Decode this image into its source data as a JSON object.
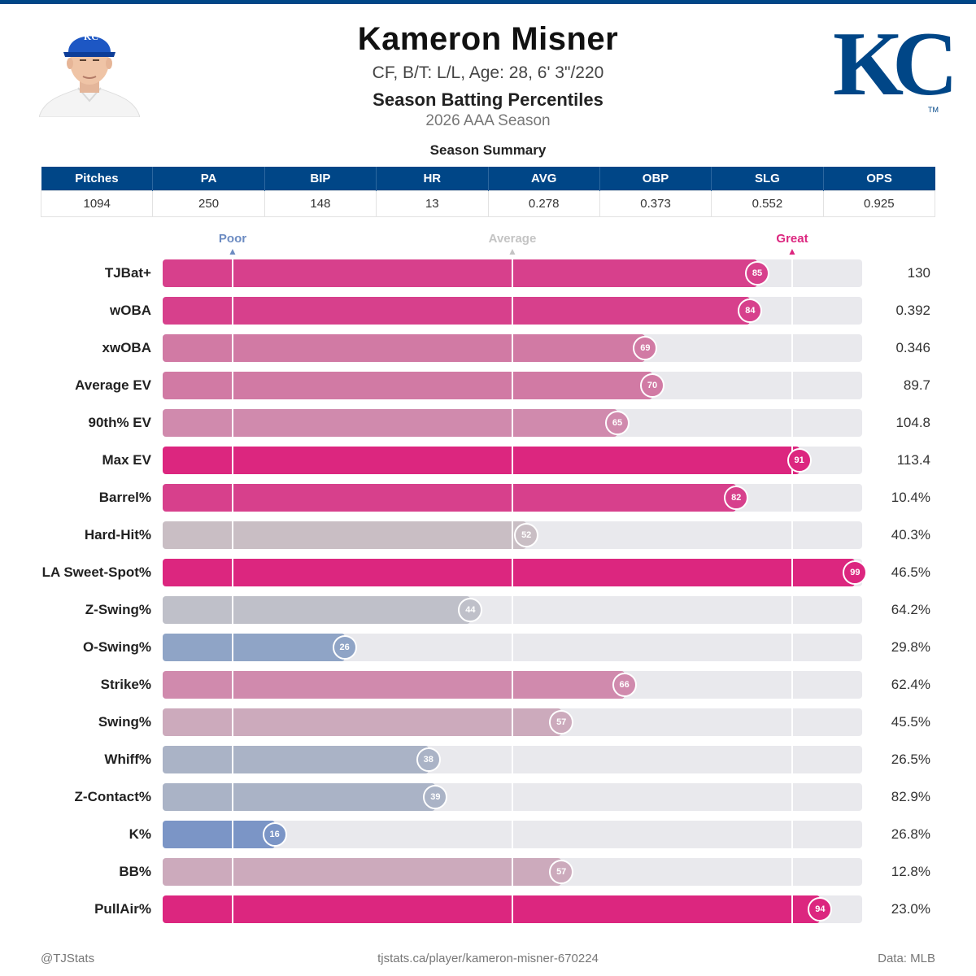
{
  "header": {
    "player_name": "Kameron Misner",
    "bio": "CF, B/T: L/L, Age: 28, 6' 3\"/220",
    "subtitle": "Season Batting Percentiles",
    "season": "2026 AAA Season",
    "summary_title": "Season Summary",
    "team_logo_text": "KC",
    "team_logo_tm": "TM",
    "cap_logo_text": "KC"
  },
  "colors": {
    "brand_blue": "#004687",
    "poor": "#6d8cc2",
    "average": "#c4c4c4",
    "great": "#dc267f",
    "track": "#e9e9ed"
  },
  "summary_table": {
    "headers": [
      "Pitches",
      "PA",
      "BIP",
      "HR",
      "AVG",
      "OBP",
      "SLG",
      "OPS"
    ],
    "values": [
      "1094",
      "250",
      "148",
      "13",
      "0.278",
      "0.373",
      "0.552",
      "0.925"
    ]
  },
  "scale": {
    "poor_label": "Poor",
    "average_label": "Average",
    "great_label": "Great",
    "poor_pct": 10,
    "average_pct": 50,
    "great_pct": 90
  },
  "chart_data": {
    "type": "bar",
    "orientation": "horizontal",
    "title": "Season Batting Percentiles",
    "xlim": [
      0,
      100
    ],
    "reference_lines": [
      10,
      50,
      90
    ],
    "categories": [
      "TJBat+",
      "wOBA",
      "xwOBA",
      "Average EV",
      "90th% EV",
      "Max EV",
      "Barrel%",
      "Hard-Hit%",
      "LA Sweet-Spot%",
      "Z-Swing%",
      "O-Swing%",
      "Strike%",
      "Swing%",
      "Whiff%",
      "Z-Contact%",
      "K%",
      "BB%",
      "PullAir%"
    ],
    "percentiles": [
      85,
      84,
      69,
      70,
      65,
      91,
      82,
      52,
      99,
      44,
      26,
      66,
      57,
      38,
      39,
      16,
      57,
      94
    ],
    "stat_values": [
      "130",
      "0.392",
      "0.346",
      "89.7",
      "104.8",
      "113.4",
      "10.4%",
      "40.3%",
      "46.5%",
      "64.2%",
      "29.8%",
      "62.4%",
      "45.5%",
      "26.5%",
      "82.9%",
      "26.8%",
      "12.8%",
      "23.0%"
    ],
    "colors": [
      "#d7408c",
      "#d7408c",
      "#d17aa4",
      "#d17aa4",
      "#d08aad",
      "#dc267f",
      "#d7408c",
      "#c9bec4",
      "#dc267f",
      "#bfc0c9",
      "#8fa4c6",
      "#d08aad",
      "#ccaabc",
      "#aab3c6",
      "#aab3c6",
      "#7b95c6",
      "#ccaabc",
      "#dc267f"
    ]
  },
  "footer": {
    "left": "@TJStats",
    "center": "tjstats.ca/player/kameron-misner-670224",
    "right": "Data: MLB"
  }
}
